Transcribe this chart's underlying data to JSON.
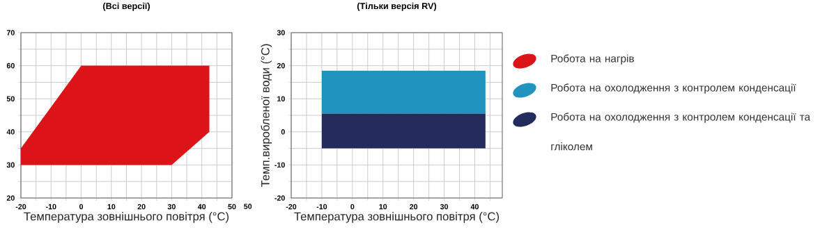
{
  "chart_data": [
    {
      "type": "area",
      "title": "(Всі версії)",
      "xlabel": "Температура зовнішнього повітря (°C)",
      "xlim": [
        -20,
        50
      ],
      "ylim": [
        20,
        70
      ],
      "xticks": [
        -20,
        {
          "value": -15,
          "label": null
        },
        -10,
        {
          "value": -5,
          "label": null
        },
        0,
        {
          "value": 5,
          "label": null
        },
        10,
        {
          "value": 15,
          "label": null
        },
        20,
        {
          "value": 25,
          "label": null
        },
        30,
        {
          "value": 35,
          "label": null
        },
        40,
        {
          "value": 45,
          "label": null
        },
        50
      ],
      "yticks": [
        20,
        {
          "value": 25,
          "label": null
        },
        30,
        {
          "value": 35,
          "label": null
        },
        40,
        {
          "value": 45,
          "label": null
        },
        50,
        {
          "value": 55,
          "label": null
        },
        60,
        {
          "value": 65,
          "label": null
        },
        70
      ],
      "grid": true,
      "legend": "right",
      "series": [
        {
          "name": "Робота на нагрів",
          "color": "#dc1418",
          "x": [
            -20,
            0,
            42.5,
            42.5,
            30,
            -20
          ],
          "values": [
            35,
            60,
            60,
            40,
            30,
            30
          ]
        }
      ],
      "annotations": [
        "50"
      ]
    },
    {
      "type": "area",
      "title": "(Тільки версія RV)",
      "xlabel": "Температура зовнішнього повітря (°C)",
      "ylabel": "Темп.виробленої води (°C)",
      "xlim": [
        -20,
        49
      ],
      "ylim": [
        -20,
        30
      ],
      "xticks": [
        -20,
        {
          "value": -15,
          "label": null
        },
        -10,
        {
          "value": -5,
          "label": null
        },
        0,
        {
          "value": 5,
          "label": null
        },
        10,
        {
          "value": 15,
          "label": null
        },
        20,
        {
          "value": 25,
          "label": null
        },
        30,
        {
          "value": 35,
          "label": null
        },
        40,
        {
          "value": 45,
          "label": null
        }
      ],
      "yticks": [
        -20,
        {
          "value": -15,
          "label": null
        },
        -10,
        {
          "value": -5,
          "label": null
        },
        0,
        {
          "value": 5,
          "label": null
        },
        10,
        {
          "value": 15,
          "label": null
        },
        20,
        {
          "value": 25,
          "label": null
        },
        30
      ],
      "grid": true,
      "legend": "right",
      "series": [
        {
          "name": "Робота на охолодження з контролем конденсації",
          "color": "#2093bf",
          "x": [
            -10,
            43.5,
            43.5,
            -10
          ],
          "values": [
            18.5,
            18.5,
            5.5,
            5.5
          ]
        },
        {
          "name": "Робота на охолодження з контролем конденсації та гліколем",
          "color": "#232c5c",
          "x": [
            -10,
            43.5,
            43.5,
            -10
          ],
          "values": [
            5.5,
            5.5,
            -5,
            -5
          ]
        }
      ]
    }
  ]
}
